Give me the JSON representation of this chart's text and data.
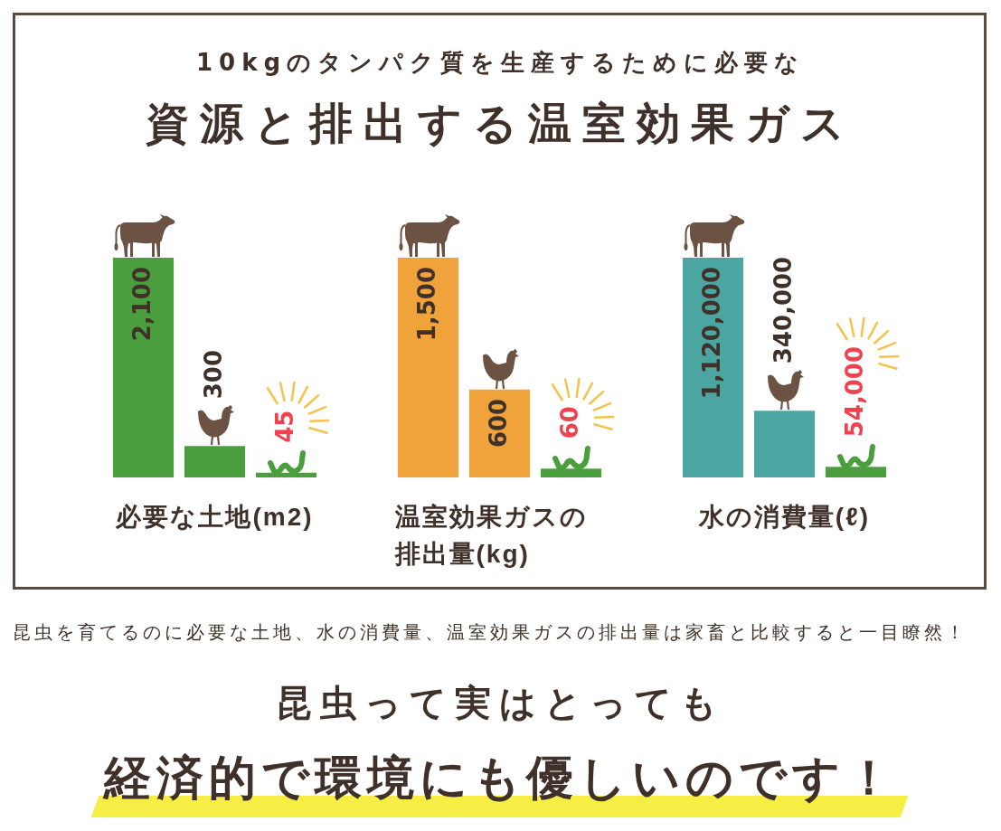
{
  "chart_data": [
    {
      "type": "other",
      "subtitle": "10kgのタンパク質を生産するために必要な",
      "title": "資源と排出する温室効果ガス"
    },
    {
      "type": "bar",
      "xlabel": "必要な土地(m2)",
      "categories": [
        null,
        null,
        null
      ],
      "values": [
        2100,
        300,
        45
      ],
      "colors": [
        "#4b9e3d",
        "#4b9e3d",
        "#4b9e3d"
      ],
      "value_labels": [
        "2,100",
        "300",
        "45"
      ],
      "tick_labels": false
    },
    {
      "type": "bar",
      "xlabel": "温室効果ガスの排出量(kg)",
      "categories": [
        null,
        null,
        null
      ],
      "values": [
        1500,
        600,
        60
      ],
      "colors": [
        "#f0a33a",
        "#f0a33a",
        "#4b9e3d"
      ],
      "value_labels": [
        "1,500",
        "600",
        "60"
      ],
      "tick_labels": false
    },
    {
      "type": "bar",
      "xlabel": "水の消費量(ℓ)",
      "categories": [
        null,
        null,
        null
      ],
      "values": [
        1120000,
        340000,
        54000
      ],
      "colors": [
        "#4ba6a2",
        "#4ba6a2",
        "#4b9e3d"
      ],
      "value_labels": [
        "1,120,000",
        "340,000",
        "54,000"
      ],
      "tick_labels": false
    },
    {
      "type": "other",
      "annotations": [
        "昆虫を育てるのに必要な土地、水の消費量、温室効果ガスの排出量は家畜と比較すると一目瞭然！",
        "昆虫って実はとっても",
        "経済的で環境にも優しいのです！"
      ]
    }
  ]
}
